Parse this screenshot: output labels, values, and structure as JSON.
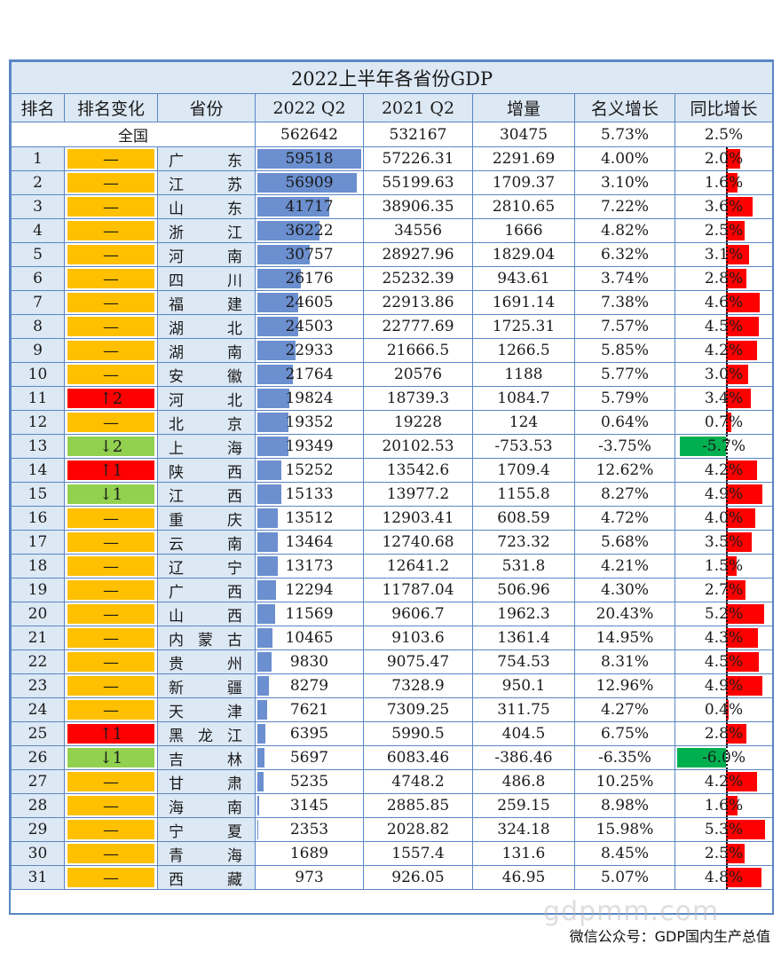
{
  "title": "2022上半年各省份GDP",
  "headers": [
    "排名",
    "排名变化",
    "省份",
    "2022 Q2",
    "2021 Q2",
    "增量",
    "名义增长",
    "同比增长"
  ],
  "total": {
    "label": "全国",
    "gdp2022": "562642",
    "gdp2021": "532167",
    "increase": "30475",
    "nominal": "5.73%",
    "yoy": "2.5%"
  },
  "colors": {
    "same": "#ffc000",
    "up": "#ff0000",
    "down": "#92d050",
    "bar": "#6b8fcf",
    "positive": "#ff0000",
    "negative": "#00b050"
  },
  "gdp_max": 59518,
  "yoy_scale_max": 6.0,
  "rows": [
    {
      "rank": "1",
      "change": "—",
      "change_type": "same",
      "province": "广东",
      "gdp2022": "59518",
      "gdp2021": "57226.31",
      "increase": "2291.69",
      "nominal": "4.00%",
      "yoy": "2.0%",
      "yoy_value": 2.0
    },
    {
      "rank": "2",
      "change": "—",
      "change_type": "same",
      "province": "江苏",
      "gdp2022": "56909",
      "gdp2021": "55199.63",
      "increase": "1709.37",
      "nominal": "3.10%",
      "yoy": "1.6%",
      "yoy_value": 1.6
    },
    {
      "rank": "3",
      "change": "—",
      "change_type": "same",
      "province": "山东",
      "gdp2022": "41717",
      "gdp2021": "38906.35",
      "increase": "2810.65",
      "nominal": "7.22%",
      "yoy": "3.6%",
      "yoy_value": 3.6
    },
    {
      "rank": "4",
      "change": "—",
      "change_type": "same",
      "province": "浙江",
      "gdp2022": "36222",
      "gdp2021": "34556",
      "increase": "1666",
      "nominal": "4.82%",
      "yoy": "2.5%",
      "yoy_value": 2.5
    },
    {
      "rank": "5",
      "change": "—",
      "change_type": "same",
      "province": "河南",
      "gdp2022": "30757",
      "gdp2021": "28927.96",
      "increase": "1829.04",
      "nominal": "6.32%",
      "yoy": "3.1%",
      "yoy_value": 3.1
    },
    {
      "rank": "6",
      "change": "—",
      "change_type": "same",
      "province": "四川",
      "gdp2022": "26176",
      "gdp2021": "25232.39",
      "increase": "943.61",
      "nominal": "3.74%",
      "yoy": "2.8%",
      "yoy_value": 2.8
    },
    {
      "rank": "7",
      "change": "—",
      "change_type": "same",
      "province": "福建",
      "gdp2022": "24605",
      "gdp2021": "22913.86",
      "increase": "1691.14",
      "nominal": "7.38%",
      "yoy": "4.6%",
      "yoy_value": 4.6
    },
    {
      "rank": "8",
      "change": "—",
      "change_type": "same",
      "province": "湖北",
      "gdp2022": "24503",
      "gdp2021": "22777.69",
      "increase": "1725.31",
      "nominal": "7.57%",
      "yoy": "4.5%",
      "yoy_value": 4.5
    },
    {
      "rank": "9",
      "change": "—",
      "change_type": "same",
      "province": "湖南",
      "gdp2022": "22933",
      "gdp2021": "21666.5",
      "increase": "1266.5",
      "nominal": "5.85%",
      "yoy": "4.2%",
      "yoy_value": 4.2
    },
    {
      "rank": "10",
      "change": "—",
      "change_type": "same",
      "province": "安徽",
      "gdp2022": "21764",
      "gdp2021": "20576",
      "increase": "1188",
      "nominal": "5.77%",
      "yoy": "3.0%",
      "yoy_value": 3.0
    },
    {
      "rank": "11",
      "change": "↑2",
      "change_type": "up",
      "province": "河北",
      "gdp2022": "19824",
      "gdp2021": "18739.3",
      "increase": "1084.7",
      "nominal": "5.79%",
      "yoy": "3.4%",
      "yoy_value": 3.4
    },
    {
      "rank": "12",
      "change": "—",
      "change_type": "same",
      "province": "北京",
      "gdp2022": "19352",
      "gdp2021": "19228",
      "increase": "124",
      "nominal": "0.64%",
      "yoy": "0.7%",
      "yoy_value": 0.7
    },
    {
      "rank": "13",
      "change": "↓2",
      "change_type": "down",
      "province": "上海",
      "gdp2022": "19349",
      "gdp2021": "20102.53",
      "increase": "-753.53",
      "nominal": "-3.75%",
      "yoy": "-5.7%",
      "yoy_value": -5.7
    },
    {
      "rank": "14",
      "change": "↑1",
      "change_type": "up",
      "province": "陕西",
      "gdp2022": "15252",
      "gdp2021": "13542.6",
      "increase": "1709.4",
      "nominal": "12.62%",
      "yoy": "4.2%",
      "yoy_value": 4.2
    },
    {
      "rank": "15",
      "change": "↓1",
      "change_type": "down",
      "province": "江西",
      "gdp2022": "15133",
      "gdp2021": "13977.2",
      "increase": "1155.8",
      "nominal": "8.27%",
      "yoy": "4.9%",
      "yoy_value": 4.9
    },
    {
      "rank": "16",
      "change": "—",
      "change_type": "same",
      "province": "重庆",
      "gdp2022": "13512",
      "gdp2021": "12903.41",
      "increase": "608.59",
      "nominal": "4.72%",
      "yoy": "4.0%",
      "yoy_value": 4.0
    },
    {
      "rank": "17",
      "change": "—",
      "change_type": "same",
      "province": "云南",
      "gdp2022": "13464",
      "gdp2021": "12740.68",
      "increase": "723.32",
      "nominal": "5.68%",
      "yoy": "3.5%",
      "yoy_value": 3.5
    },
    {
      "rank": "18",
      "change": "—",
      "change_type": "same",
      "province": "辽宁",
      "gdp2022": "13173",
      "gdp2021": "12641.2",
      "increase": "531.8",
      "nominal": "4.21%",
      "yoy": "1.5%",
      "yoy_value": 1.5
    },
    {
      "rank": "19",
      "change": "—",
      "change_type": "same",
      "province": "广西",
      "gdp2022": "12294",
      "gdp2021": "11787.04",
      "increase": "506.96",
      "nominal": "4.30%",
      "yoy": "2.7%",
      "yoy_value": 2.7
    },
    {
      "rank": "20",
      "change": "—",
      "change_type": "same",
      "province": "山西",
      "gdp2022": "11569",
      "gdp2021": "9606.7",
      "increase": "1962.3",
      "nominal": "20.43%",
      "yoy": "5.2%",
      "yoy_value": 5.2
    },
    {
      "rank": "21",
      "change": "—",
      "change_type": "same",
      "province": "内蒙古",
      "gdp2022": "10465",
      "gdp2021": "9103.6",
      "increase": "1361.4",
      "nominal": "14.95%",
      "yoy": "4.3%",
      "yoy_value": 4.3
    },
    {
      "rank": "22",
      "change": "—",
      "change_type": "same",
      "province": "贵州",
      "gdp2022": "9830",
      "gdp2021": "9075.47",
      "increase": "754.53",
      "nominal": "8.31%",
      "yoy": "4.5%",
      "yoy_value": 4.5
    },
    {
      "rank": "23",
      "change": "—",
      "change_type": "same",
      "province": "新疆",
      "gdp2022": "8279",
      "gdp2021": "7328.9",
      "increase": "950.1",
      "nominal": "12.96%",
      "yoy": "4.9%",
      "yoy_value": 4.9
    },
    {
      "rank": "24",
      "change": "—",
      "change_type": "same",
      "province": "天津",
      "gdp2022": "7621",
      "gdp2021": "7309.25",
      "increase": "311.75",
      "nominal": "4.27%",
      "yoy": "0.4%",
      "yoy_value": 0.4
    },
    {
      "rank": "25",
      "change": "↑1",
      "change_type": "up",
      "province": "黑龙江",
      "gdp2022": "6395",
      "gdp2021": "5990.5",
      "increase": "404.5",
      "nominal": "6.75%",
      "yoy": "2.8%",
      "yoy_value": 2.8
    },
    {
      "rank": "26",
      "change": "↓1",
      "change_type": "down",
      "province": "吉林",
      "gdp2022": "5697",
      "gdp2021": "6083.46",
      "increase": "-386.46",
      "nominal": "-6.35%",
      "yoy": "-6.0%",
      "yoy_value": -6.0
    },
    {
      "rank": "27",
      "change": "—",
      "change_type": "same",
      "province": "甘肃",
      "gdp2022": "5235",
      "gdp2021": "4748.2",
      "increase": "486.8",
      "nominal": "10.25%",
      "yoy": "4.2%",
      "yoy_value": 4.2
    },
    {
      "rank": "28",
      "change": "—",
      "change_type": "same",
      "province": "海南",
      "gdp2022": "3145",
      "gdp2021": "2885.85",
      "increase": "259.15",
      "nominal": "8.98%",
      "yoy": "1.6%",
      "yoy_value": 1.6
    },
    {
      "rank": "29",
      "change": "—",
      "change_type": "same",
      "province": "宁夏",
      "gdp2022": "2353",
      "gdp2021": "2028.82",
      "increase": "324.18",
      "nominal": "15.98%",
      "yoy": "5.3%",
      "yoy_value": 5.3
    },
    {
      "rank": "30",
      "change": "—",
      "change_type": "same",
      "province": "青海",
      "gdp2022": "1689",
      "gdp2021": "1557.4",
      "increase": "131.6",
      "nominal": "8.45%",
      "yoy": "2.5%",
      "yoy_value": 2.5
    },
    {
      "rank": "31",
      "change": "—",
      "change_type": "same",
      "province": "西藏",
      "gdp2022": "973",
      "gdp2021": "926.05",
      "increase": "46.95",
      "nominal": "5.07%",
      "yoy": "4.8%",
      "yoy_value": 4.8
    }
  ],
  "footer": "微信公众号：GDP国内生产总值",
  "watermark": "gdpmm.com"
}
